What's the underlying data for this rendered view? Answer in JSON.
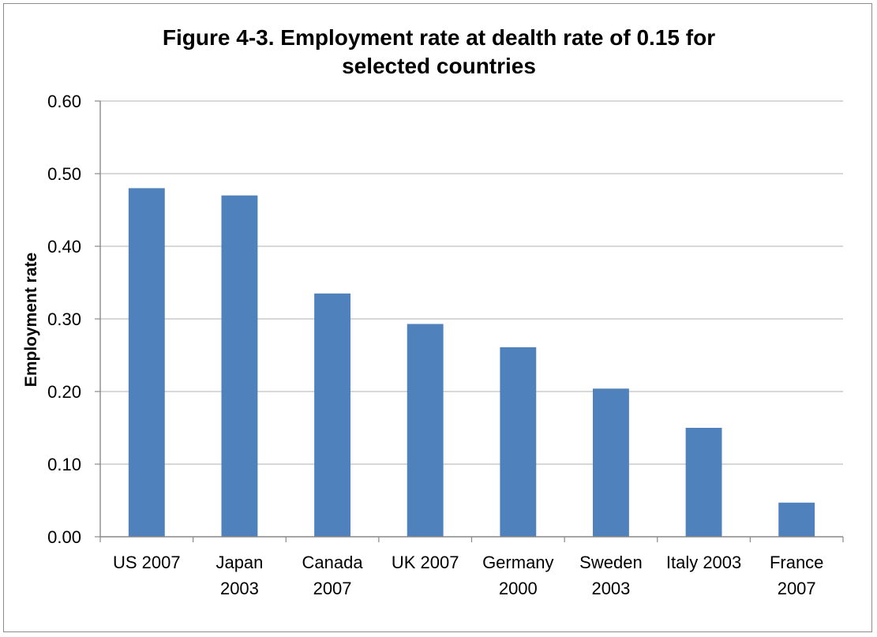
{
  "chart_data": {
    "type": "bar",
    "title": [
      "Figure 4-3.  Employment rate at dealth rate of 0.15 for",
      "selected countries"
    ],
    "ylabel": "Employment  rate",
    "xlabel": "",
    "ylim": [
      0,
      0.6
    ],
    "yticks": [
      "0.00",
      "0.10",
      "0.20",
      "0.30",
      "0.40",
      "0.50",
      "0.60"
    ],
    "categories": [
      [
        "US 2007"
      ],
      [
        "Japan",
        "2003"
      ],
      [
        "Canada",
        "2007"
      ],
      [
        "UK 2007"
      ],
      [
        "Germany",
        "2000"
      ],
      [
        "Sweden",
        "2003"
      ],
      [
        "Italy 2003"
      ],
      [
        "France",
        "2007"
      ]
    ],
    "values": [
      0.48,
      0.47,
      0.335,
      0.293,
      0.261,
      0.204,
      0.15,
      0.047
    ],
    "bar_color": "#4f81bd",
    "grid": true,
    "legend": "none"
  }
}
